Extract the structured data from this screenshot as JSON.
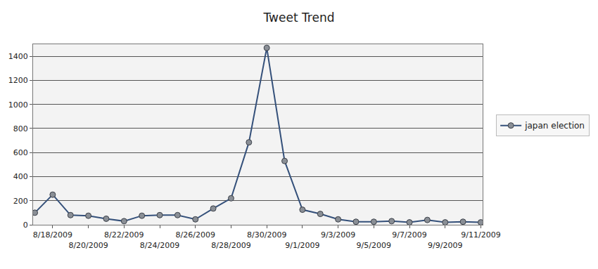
{
  "chart_data": {
    "type": "line",
    "title": "Tweet Trend",
    "categories": [
      null,
      "8/18/2009",
      null,
      "8/20/2009",
      null,
      "8/22/2009",
      null,
      "8/24/2009",
      null,
      "8/26/2009",
      null,
      "8/28/2009",
      null,
      "8/30/2009",
      null,
      "9/1/2009",
      null,
      "9/3/2009",
      null,
      "9/5/2009",
      null,
      "9/7/2009",
      null,
      "9/9/2009",
      null,
      "9/11/2009"
    ],
    "series": [
      {
        "name": "japan election",
        "color": "#34507a",
        "marker": "circle",
        "values": [
          100,
          250,
          80,
          75,
          50,
          30,
          75,
          80,
          80,
          45,
          135,
          220,
          685,
          1470,
          530,
          125,
          90,
          45,
          25,
          25,
          30,
          20,
          40,
          20,
          25,
          20
        ]
      }
    ],
    "ylim": [
      0,
      1500
    ],
    "yticks": [
      0,
      200,
      400,
      600,
      800,
      1000,
      1200,
      1400
    ],
    "grid": true,
    "legend": "right"
  }
}
